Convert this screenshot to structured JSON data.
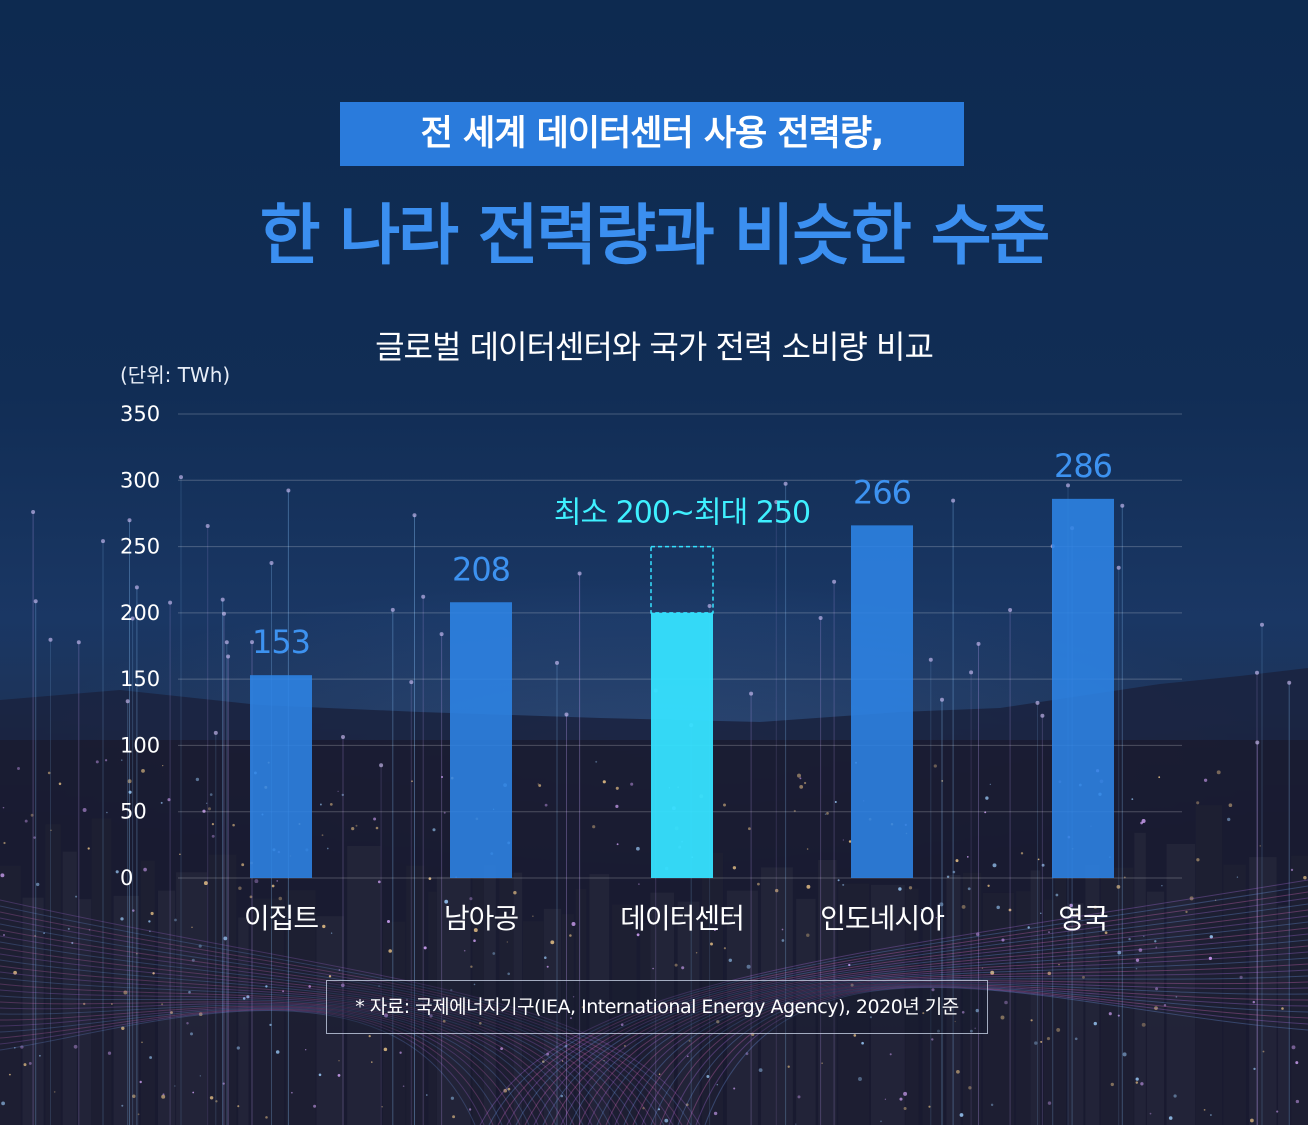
{
  "headline": {
    "line1": "전 세계 데이터센터 사용 전력량,",
    "line2": "한 나라 전력량과 비슷한 수준"
  },
  "colors": {
    "accent_blue": "#2a7bdc",
    "headline2": "#3b8ff0",
    "bar": "#2e84e6",
    "bar_highlight": "#36e2ff",
    "range_label": "#3ff0ff"
  },
  "chart_data": {
    "type": "bar",
    "title": "글로벌 데이터센터와 국가 전력 소비량 비교",
    "unit": "(단위: TWh)",
    "categories": [
      "이집트",
      "남아공",
      "데이터센터",
      "인도네시아",
      "영국"
    ],
    "values": [
      153,
      208,
      200,
      266,
      286
    ],
    "value_labels": [
      "153",
      "208",
      "",
      "266",
      "286"
    ],
    "highlight": {
      "category": "데이터센터",
      "min": 200,
      "max": 250,
      "label": "최소 200~최대 250"
    },
    "yticks": [
      "0",
      "50",
      "100",
      "150",
      "200",
      "250",
      "300",
      "350"
    ],
    "ylim": [
      0,
      350
    ],
    "grid": true,
    "legend": "none"
  },
  "source": "* 자료: 국제에너지기구(IEA, International Energy Agency), 2020년 기준"
}
